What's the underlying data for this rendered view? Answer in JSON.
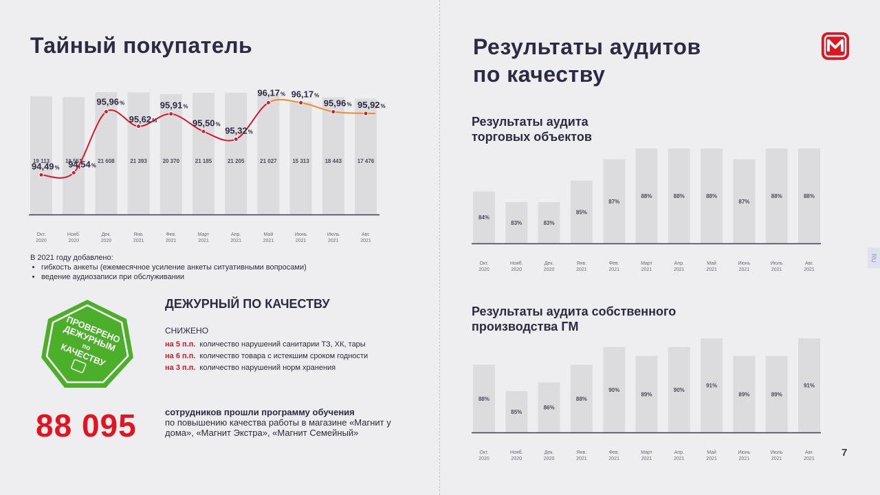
{
  "left": {
    "title": "Тайный покупатель",
    "notes": {
      "heading": "В 2021 году добавлено:",
      "items": [
        "гибкость анкеты (ежемесячное усиление анкеты ситуативными вопросами)",
        "ведение аудиозаписи при обслуживании"
      ]
    },
    "badge": {
      "lines": [
        "ПРОВЕРЕНО",
        "ДЕЖУРНЫМ",
        "по",
        "КАЧЕСТВУ"
      ],
      "color": "#4caf2a"
    },
    "duty": {
      "title": "ДЕЖУРНЫЙ ПО КАЧЕСТВУ",
      "subtitle": "СНИЖЕНО",
      "rows": [
        {
          "amount": "на 5 п.п.",
          "text": "количество нарушений санитарии ТЗ, ХК, тары"
        },
        {
          "amount": "на 6 п.п.",
          "text": "количество товара с истекшим сроком годности"
        },
        {
          "amount": "на 3 п.п.",
          "text": "количество нарушений норм хранения"
        }
      ]
    },
    "training": {
      "number": "88 095",
      "bold": "сотрудников прошли программу обучения",
      "text": "по повышению качества работы в магазине «Магнит у дома», «Магнит Экстра», «Магнит Семейный»"
    }
  },
  "right": {
    "title_line1": "Результаты аудитов",
    "title_line2": "по качеству",
    "sub1_line1": "Результаты аудита",
    "sub1_line2": "торговых объектов",
    "sub2_line1": "Результаты аудита собственного",
    "sub2_line2": "производства ГМ",
    "page_number": "7",
    "side_tab": "RU"
  },
  "colors": {
    "accent": "#e1141f",
    "bar": "#dcdcde",
    "line_red": "#d11a2a",
    "line_orange": "#f08a2c",
    "axis": "#3a3a50"
  },
  "chart_data": [
    {
      "type": "bar",
      "id": "mystery",
      "categories": [
        [
          "Окт.",
          "2020"
        ],
        [
          "Нояб.",
          "2020"
        ],
        [
          "Дек.",
          "2020"
        ],
        [
          "Янв.",
          "2021"
        ],
        [
          "Фев.",
          "2021"
        ],
        [
          "Март",
          "2021"
        ],
        [
          "Апр.",
          "2021"
        ],
        [
          "Май",
          "2021"
        ],
        [
          "Июнь",
          "2021"
        ],
        [
          "Июль",
          "2021"
        ],
        [
          "Авг.",
          "2021"
        ]
      ],
      "values": [
        19113,
        18551,
        21608,
        21393,
        20370,
        21185,
        21205,
        21027,
        15313,
        18443,
        17476
      ],
      "value_labels": [
        "19 113",
        "18 551",
        "21 608",
        "21 393",
        "20 370",
        "21 185",
        "21 205",
        "21 027",
        "15 313",
        "18 443",
        "17 476"
      ],
      "line_values": [
        94.49,
        94.54,
        95.96,
        95.62,
        95.91,
        95.5,
        95.32,
        96.17,
        96.17,
        95.96,
        95.92
      ],
      "line_labels": [
        "94,49",
        "94,54",
        "95,96",
        "95,62",
        "95,91",
        "95,50",
        "95,32",
        "96,17",
        "96,17",
        "95,96",
        "95,92"
      ],
      "line_unit": "%"
    },
    {
      "type": "bar",
      "id": "audit_stores",
      "categories": [
        [
          "Окт.",
          "2020"
        ],
        [
          "Нояб.",
          "2020"
        ],
        [
          "Дек.",
          "2020"
        ],
        [
          "Янв.",
          "2021"
        ],
        [
          "Фев.",
          "2021"
        ],
        [
          "Март",
          "2021"
        ],
        [
          "Апр.",
          "2021"
        ],
        [
          "Май",
          "2021"
        ],
        [
          "Июнь",
          "2021"
        ],
        [
          "Июль",
          "2021"
        ],
        [
          "Авг.",
          "2021"
        ]
      ],
      "values": [
        84,
        83,
        83,
        85,
        87,
        88,
        88,
        88,
        87,
        88,
        88
      ],
      "unit": "%"
    },
    {
      "type": "bar",
      "id": "audit_production",
      "categories": [
        [
          "Окт.",
          "2020"
        ],
        [
          "Нояб.",
          "2020"
        ],
        [
          "Дек.",
          "2020"
        ],
        [
          "Янв.",
          "2021"
        ],
        [
          "Фев.",
          "2021"
        ],
        [
          "Март",
          "2021"
        ],
        [
          "Апр.",
          "2021"
        ],
        [
          "Май",
          "2021"
        ],
        [
          "Июнь",
          "2021"
        ],
        [
          "Июль",
          "2021"
        ],
        [
          "Авг.",
          "2021"
        ]
      ],
      "values": [
        88,
        85,
        86,
        88,
        90,
        89,
        90,
        91,
        89,
        89,
        91
      ],
      "unit": "%"
    }
  ]
}
